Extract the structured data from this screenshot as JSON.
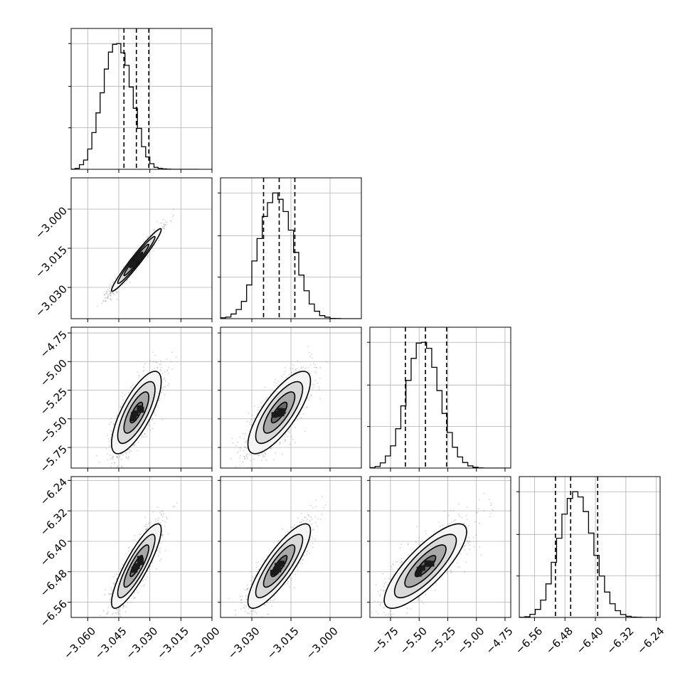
{
  "chart_data": {
    "type": "corner",
    "grid": true,
    "parameters": [
      {
        "range": [
          -3.068,
          -3.0
        ],
        "ticks": [
          -3.06,
          -3.045,
          -3.03,
          -3.015,
          -3.0
        ],
        "tick_labels": [
          "−3.060",
          "−3.045",
          "−3.030",
          "−3.015",
          "−3.000"
        ],
        "quantiles": [
          -3.0425,
          -3.0365,
          -3.0305
        ],
        "hist_edges": [
          -3.068,
          -3.066,
          -3.064,
          -3.062,
          -3.06,
          -3.058,
          -3.056,
          -3.054,
          -3.052,
          -3.05,
          -3.048,
          -3.046,
          -3.044,
          -3.042,
          -3.04,
          -3.038,
          -3.036,
          -3.034,
          -3.032,
          -3.03,
          -3.028,
          -3.026,
          -3.024,
          -3.022,
          -3.02,
          -3.018,
          -3.016,
          -3.014,
          -3.012,
          -3.01,
          -3.008,
          -3.006
        ],
        "hist_counts": [
          1,
          5,
          24,
          48,
          105,
          190,
          292,
          396,
          519,
          607,
          647,
          651,
          603,
          538,
          426,
          316,
          212,
          117,
          64,
          29,
          10,
          5,
          2,
          1,
          0,
          0,
          0,
          0,
          0,
          0,
          0
        ]
      },
      {
        "range": [
          -3.042,
          -2.988
        ],
        "ticks": [
          -3.03,
          -3.015,
          -3.0
        ],
        "tick_labels": [
          "−3.030",
          "−3.015",
          "−3.000"
        ],
        "quantiles": [
          -3.0255,
          -3.0195,
          -3.0135
        ],
        "hist_edges": [
          -3.042,
          -3.04,
          -3.038,
          -3.036,
          -3.034,
          -3.032,
          -3.03,
          -3.028,
          -3.026,
          -3.024,
          -3.022,
          -3.02,
          -3.018,
          -3.016,
          -3.014,
          -3.012,
          -3.01,
          -3.008,
          -3.006,
          -3.004,
          -3.002,
          -3.0,
          -2.998,
          -2.996,
          -2.994,
          -2.992,
          -2.99,
          -2.988
        ],
        "hist_counts": [
          6,
          11,
          32,
          63,
          119,
          232,
          397,
          551,
          703,
          798,
          865,
          821,
          737,
          609,
          456,
          300,
          192,
          101,
          51,
          21,
          10,
          2,
          1,
          0,
          0,
          0,
          0
        ]
      },
      {
        "range": [
          -5.93,
          -4.7
        ],
        "ticks": [
          -5.75,
          -5.5,
          -5.25,
          -5.0,
          -4.75
        ],
        "tick_labels": [
          "−5.75",
          "−5.50",
          "−5.25",
          "−5.00",
          "−4.75"
        ],
        "quantiles": [
          -5.62,
          -5.445,
          -5.26
        ],
        "hist_edges": [
          -5.93,
          -5.885,
          -5.84,
          -5.795,
          -5.75,
          -5.705,
          -5.66,
          -5.615,
          -5.57,
          -5.525,
          -5.48,
          -5.435,
          -5.39,
          -5.345,
          -5.3,
          -5.255,
          -5.21,
          -5.165,
          -5.12,
          -5.075,
          -5.03,
          -4.985,
          -4.94,
          -4.895,
          -4.85,
          -4.805,
          -4.76,
          -4.715
        ],
        "hist_counts": [
          2,
          8,
          26,
          61,
          112,
          198,
          313,
          441,
          552,
          629,
          633,
          603,
          507,
          390,
          275,
          179,
          105,
          56,
          28,
          11,
          4,
          1,
          0,
          0,
          0,
          0,
          0
        ]
      },
      {
        "range": [
          -6.6,
          -6.23
        ],
        "ticks": [
          -6.56,
          -6.48,
          -6.4,
          -6.32,
          -6.24
        ],
        "tick_labels": [
          "−6.56",
          "−6.48",
          "−6.40",
          "−6.32",
          "−6.24"
        ],
        "quantiles": [
          -6.505,
          -6.465,
          -6.394
        ],
        "hist_edges": [
          -6.6,
          -6.586,
          -6.572,
          -6.558,
          -6.544,
          -6.53,
          -6.516,
          -6.502,
          -6.488,
          -6.474,
          -6.46,
          -6.446,
          -6.432,
          -6.418,
          -6.404,
          -6.39,
          -6.376,
          -6.362,
          -6.348,
          -6.334,
          -6.32,
          -6.306,
          -6.292,
          -6.278,
          -6.264,
          -6.25,
          -6.236
        ],
        "hist_counts": [
          1,
          4,
          17,
          44,
          95,
          184,
          302,
          434,
          566,
          652,
          689,
          660,
          580,
          462,
          340,
          227,
          139,
          75,
          37,
          16,
          6,
          2,
          1,
          0,
          0,
          0
        ]
      }
    ],
    "covariance": [
      [
        1.0,
        0.97,
        0.75,
        0.86
      ],
      [
        0.97,
        1.0,
        0.77,
        0.84
      ],
      [
        0.75,
        0.77,
        1.0,
        0.81
      ],
      [
        0.86,
        0.84,
        0.81,
        1.0
      ]
    ],
    "contour_levels": [
      0.5,
      1.0,
      1.5,
      2.0
    ],
    "scatter_color": "#808080",
    "hist_color": "#000000"
  }
}
